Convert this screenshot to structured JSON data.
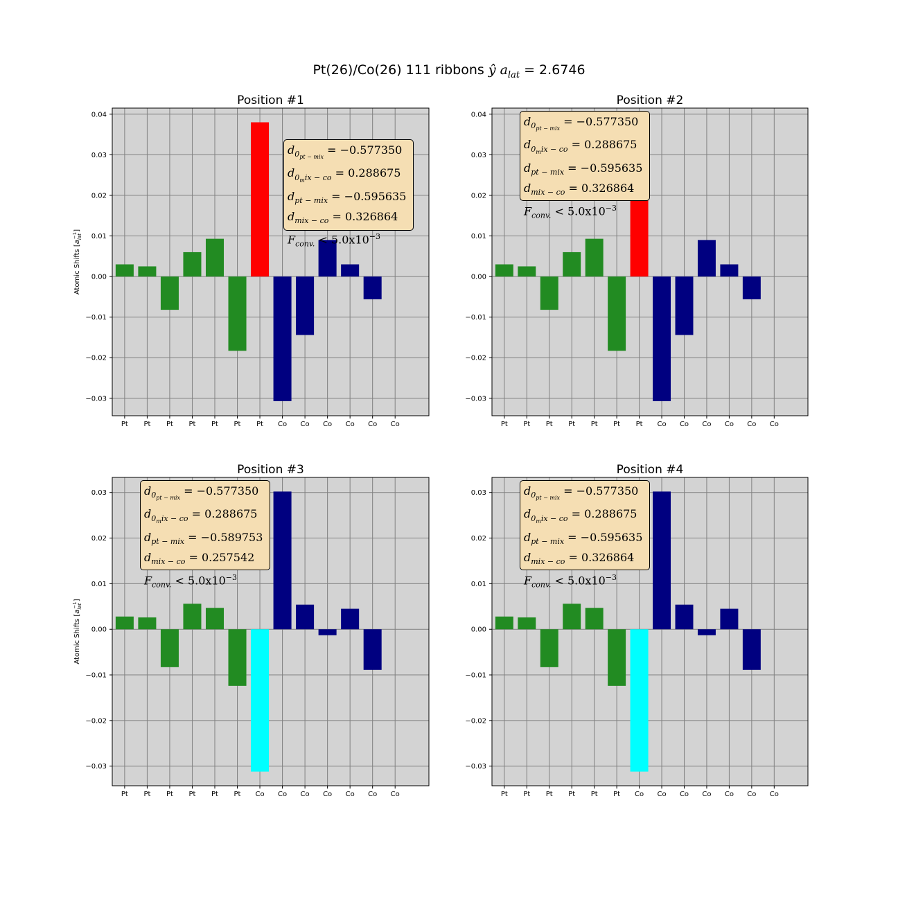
{
  "figure": {
    "title_prefix": "Pt(26)/Co(26) 111 ribbons ",
    "title_math": "ŷ a",
    "title_sub": "lat",
    "title_suffix": " = 2.6746"
  },
  "colors": {
    "Pt": "#228b22",
    "Co": "#000080",
    "highlight_red": "#ff0000",
    "highlight_cyan": "#00ffff",
    "axes_bg": "#d3d3d3",
    "grid": "#808080",
    "box_bg": "#f5deb3"
  },
  "chart_data": [
    {
      "type": "bar",
      "title": "Position #1",
      "ylabel": "Atomic Shifts [a_lat^-1]",
      "ylim": [
        -0.0343,
        0.0415
      ],
      "yticks": [
        -0.03,
        -0.02,
        -0.01,
        0.0,
        0.01,
        0.02,
        0.03,
        0.04
      ],
      "ytick_labels": [
        "−0.03",
        "−0.02",
        "−0.01",
        "0.00",
        "0.01",
        "0.02",
        "0.03",
        "0.04"
      ],
      "grid": true,
      "categories": [
        "Pt",
        "Pt",
        "Pt",
        "Pt",
        "Pt",
        "Pt",
        "Pt",
        "Co",
        "Co",
        "Co",
        "Co",
        "Co",
        "Co"
      ],
      "values": [
        0.003,
        0.0025,
        -0.0082,
        0.006,
        0.0093,
        -0.0183,
        0.038,
        -0.0307,
        -0.0144,
        0.009,
        0.003,
        -0.0056,
        null
      ],
      "bar_colors": [
        "Pt",
        "Pt",
        "Pt",
        "Pt",
        "Pt",
        "Pt",
        "highlight_red",
        "Co",
        "Co",
        "Co",
        "Co",
        "Co",
        "Co"
      ],
      "box": {
        "position": "upper-right",
        "d0pt_mix": "−0.577350",
        "d0mix_co": "0.288675",
        "dpt_mix": "−0.595635",
        "dmix_co": "0.326864",
        "fconv": "5.0x10",
        "fconv_exp": "−3"
      }
    },
    {
      "type": "bar",
      "title": "Position #2",
      "ylabel": "",
      "ylim": [
        -0.0343,
        0.0415
      ],
      "yticks": [
        -0.03,
        -0.02,
        -0.01,
        0.0,
        0.01,
        0.02,
        0.03,
        0.04
      ],
      "ytick_labels": [
        "−0.03",
        "−0.02",
        "−0.01",
        "0.00",
        "0.01",
        "0.02",
        "0.03",
        "0.04"
      ],
      "grid": true,
      "categories": [
        "Pt",
        "Pt",
        "Pt",
        "Pt",
        "Pt",
        "Pt",
        "Pt",
        "Co",
        "Co",
        "Co",
        "Co",
        "Co",
        "Co"
      ],
      "values": [
        0.003,
        0.0025,
        -0.0082,
        0.006,
        0.0093,
        -0.0183,
        0.038,
        -0.0307,
        -0.0144,
        0.009,
        0.003,
        -0.0056,
        null
      ],
      "bar_colors": [
        "Pt",
        "Pt",
        "Pt",
        "Pt",
        "Pt",
        "Pt",
        "highlight_red",
        "Co",
        "Co",
        "Co",
        "Co",
        "Co",
        "Co"
      ],
      "box": {
        "position": "upper-left",
        "d0pt_mix": "−0.577350",
        "d0mix_co": "0.288675",
        "dpt_mix": "−0.595635",
        "dmix_co": "0.326864",
        "fconv": "5.0x10",
        "fconv_exp": "−3"
      }
    },
    {
      "type": "bar",
      "title": "Position #3",
      "ylabel": "Atomic Shifts [a_lat^-1]",
      "ylim": [
        -0.0343,
        0.0333
      ],
      "yticks": [
        -0.03,
        -0.02,
        -0.01,
        0.0,
        0.01,
        0.02,
        0.03
      ],
      "ytick_labels": [
        "−0.03",
        "−0.02",
        "−0.01",
        "0.00",
        "0.01",
        "0.02",
        "0.03"
      ],
      "grid": true,
      "categories": [
        "Pt",
        "Pt",
        "Pt",
        "Pt",
        "Pt",
        "Pt",
        "Co",
        "Co",
        "Co",
        "Co",
        "Co",
        "Co",
        "Co"
      ],
      "values": [
        0.0028,
        0.0026,
        -0.0083,
        0.0056,
        0.0047,
        -0.0124,
        -0.0312,
        0.0302,
        0.0054,
        -0.0013,
        0.0045,
        -0.0089,
        null
      ],
      "bar_colors": [
        "Pt",
        "Pt",
        "Pt",
        "Pt",
        "Pt",
        "Pt",
        "highlight_cyan",
        "Co",
        "Co",
        "Co",
        "Co",
        "Co",
        "Co"
      ],
      "box": {
        "position": "upper-left",
        "d0pt_mix": "−0.577350",
        "d0mix_co": "0.288675",
        "dpt_mix": "−0.589753",
        "dmix_co": "0.257542",
        "fconv": "5.0x10",
        "fconv_exp": "−3"
      }
    },
    {
      "type": "bar",
      "title": "Position #4",
      "ylabel": "",
      "ylim": [
        -0.0343,
        0.0333
      ],
      "yticks": [
        -0.03,
        -0.02,
        -0.01,
        0.0,
        0.01,
        0.02,
        0.03
      ],
      "ytick_labels": [
        "−0.03",
        "−0.02",
        "−0.01",
        "0.00",
        "0.01",
        "0.02",
        "0.03"
      ],
      "grid": true,
      "categories": [
        "Pt",
        "Pt",
        "Pt",
        "Pt",
        "Pt",
        "Pt",
        "Co",
        "Co",
        "Co",
        "Co",
        "Co",
        "Co",
        "Co"
      ],
      "values": [
        0.0028,
        0.0026,
        -0.0083,
        0.0056,
        0.0047,
        -0.0124,
        -0.0312,
        0.0302,
        0.0054,
        -0.0013,
        0.0045,
        -0.0089,
        null
      ],
      "bar_colors": [
        "Pt",
        "Pt",
        "Pt",
        "Pt",
        "Pt",
        "Pt",
        "highlight_cyan",
        "Co",
        "Co",
        "Co",
        "Co",
        "Co",
        "Co"
      ],
      "box": {
        "position": "upper-left",
        "d0pt_mix": "−0.577350",
        "d0mix_co": "0.288675",
        "dpt_mix": "−0.595635",
        "dmix_co": "0.326864",
        "fconv": "5.0x10",
        "fconv_exp": "−3"
      }
    }
  ]
}
